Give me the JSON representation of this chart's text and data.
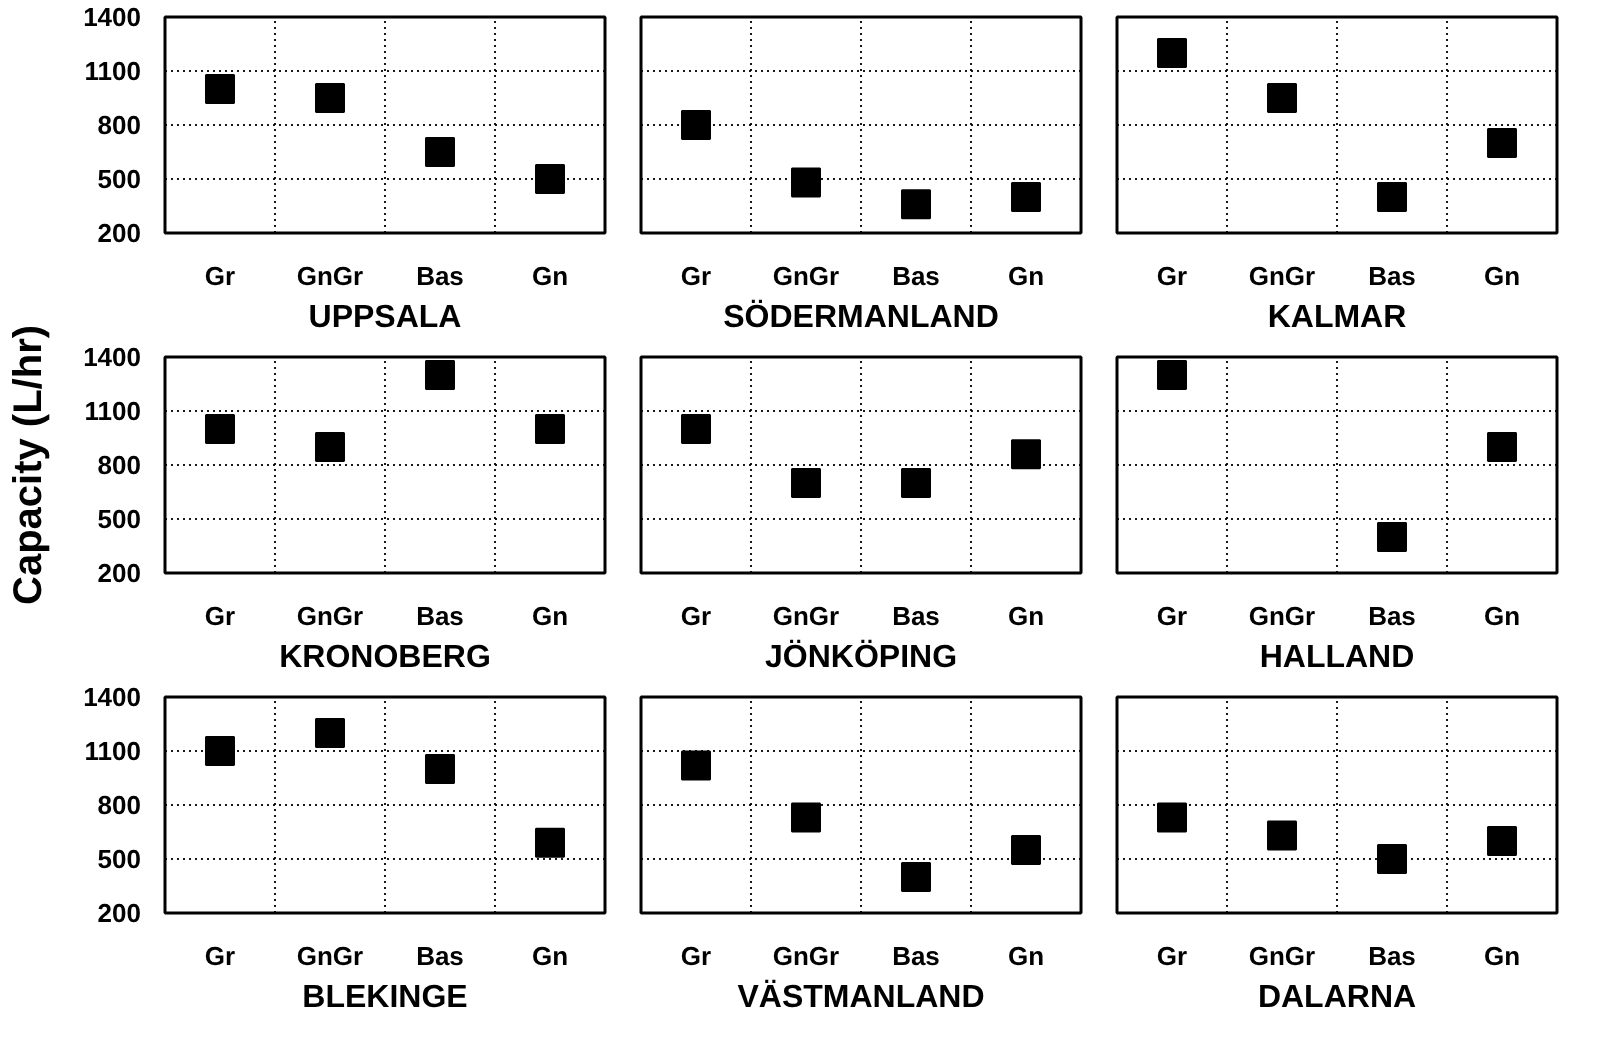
{
  "chart_data": [
    {
      "type": "scatter",
      "title": "UPPSALA",
      "categories": [
        "Gr",
        "GnGr",
        "Bas",
        "Gn"
      ],
      "values": [
        1000,
        950,
        650,
        500
      ],
      "color": "#000000",
      "marker": "square",
      "ylim": [
        200,
        1400
      ],
      "yticks": [
        200,
        500,
        800,
        1100,
        1400
      ],
      "grid": true
    },
    {
      "type": "scatter",
      "title": "SÖDERMANLAND",
      "categories": [
        "Gr",
        "GnGr",
        "Bas",
        "Gn"
      ],
      "values": [
        800,
        480,
        360,
        400
      ],
      "color": "#000000",
      "marker": "square",
      "ylim": [
        200,
        1400
      ],
      "yticks": [
        200,
        500,
        800,
        1100,
        1400
      ],
      "grid": true,
      "tick_labels": "x"
    },
    {
      "type": "scatter",
      "title": "KALMAR",
      "categories": [
        "Gr",
        "GnGr",
        "Bas",
        "Gn"
      ],
      "values": [
        1200,
        950,
        400,
        700
      ],
      "color": "#000000",
      "marker": "square",
      "ylim": [
        200,
        1400
      ],
      "yticks": [
        200,
        500,
        800,
        1100,
        1400
      ],
      "grid": true,
      "tick_labels": "x"
    },
    {
      "type": "scatter",
      "title": "KRONOBERG",
      "ylabel": "Capacity (L/hr)",
      "categories": [
        "Gr",
        "GnGr",
        "Bas",
        "Gn"
      ],
      "values": [
        1000,
        900,
        1300,
        1000
      ],
      "color": "#000000",
      "marker": "square",
      "ylim": [
        200,
        1400
      ],
      "yticks": [
        200,
        500,
        800,
        1100,
        1400
      ],
      "grid": true
    },
    {
      "type": "scatter",
      "title": "JÖNKÖPING",
      "categories": [
        "Gr",
        "GnGr",
        "Bas",
        "Gn"
      ],
      "values": [
        1000,
        700,
        700,
        860
      ],
      "color": "#000000",
      "marker": "square",
      "ylim": [
        200,
        1400
      ],
      "yticks": [
        200,
        500,
        800,
        1100,
        1400
      ],
      "grid": true,
      "tick_labels": "x"
    },
    {
      "type": "scatter",
      "title": "HALLAND",
      "categories": [
        "Gr",
        "GnGr",
        "Bas",
        "Gn"
      ],
      "values": [
        1300,
        null,
        400,
        900
      ],
      "color": "#000000",
      "marker": "square",
      "ylim": [
        200,
        1400
      ],
      "yticks": [
        200,
        500,
        800,
        1100,
        1400
      ],
      "grid": true,
      "tick_labels": "x"
    },
    {
      "type": "scatter",
      "title": "BLEKINGE",
      "categories": [
        "Gr",
        "GnGr",
        "Bas",
        "Gn"
      ],
      "values": [
        1100,
        1200,
        1000,
        590
      ],
      "color": "#000000",
      "marker": "square",
      "ylim": [
        200,
        1400
      ],
      "yticks": [
        200,
        500,
        800,
        1100,
        1400
      ],
      "grid": true
    },
    {
      "type": "scatter",
      "title": "VÄSTMANLAND",
      "categories": [
        "Gr",
        "GnGr",
        "Bas",
        "Gn"
      ],
      "values": [
        1020,
        730,
        400,
        550
      ],
      "color": "#000000",
      "marker": "square",
      "ylim": [
        200,
        1400
      ],
      "yticks": [
        200,
        500,
        800,
        1100,
        1400
      ],
      "grid": true,
      "tick_labels": "x"
    },
    {
      "type": "scatter",
      "title": "DALARNA",
      "categories": [
        "Gr",
        "GnGr",
        "Bas",
        "Gn"
      ],
      "values": [
        730,
        630,
        500,
        600
      ],
      "color": "#000000",
      "marker": "square",
      "ylim": [
        200,
        1400
      ],
      "yticks": [
        200,
        500,
        800,
        1100,
        1400
      ],
      "grid": true,
      "tick_labels": "x"
    }
  ]
}
